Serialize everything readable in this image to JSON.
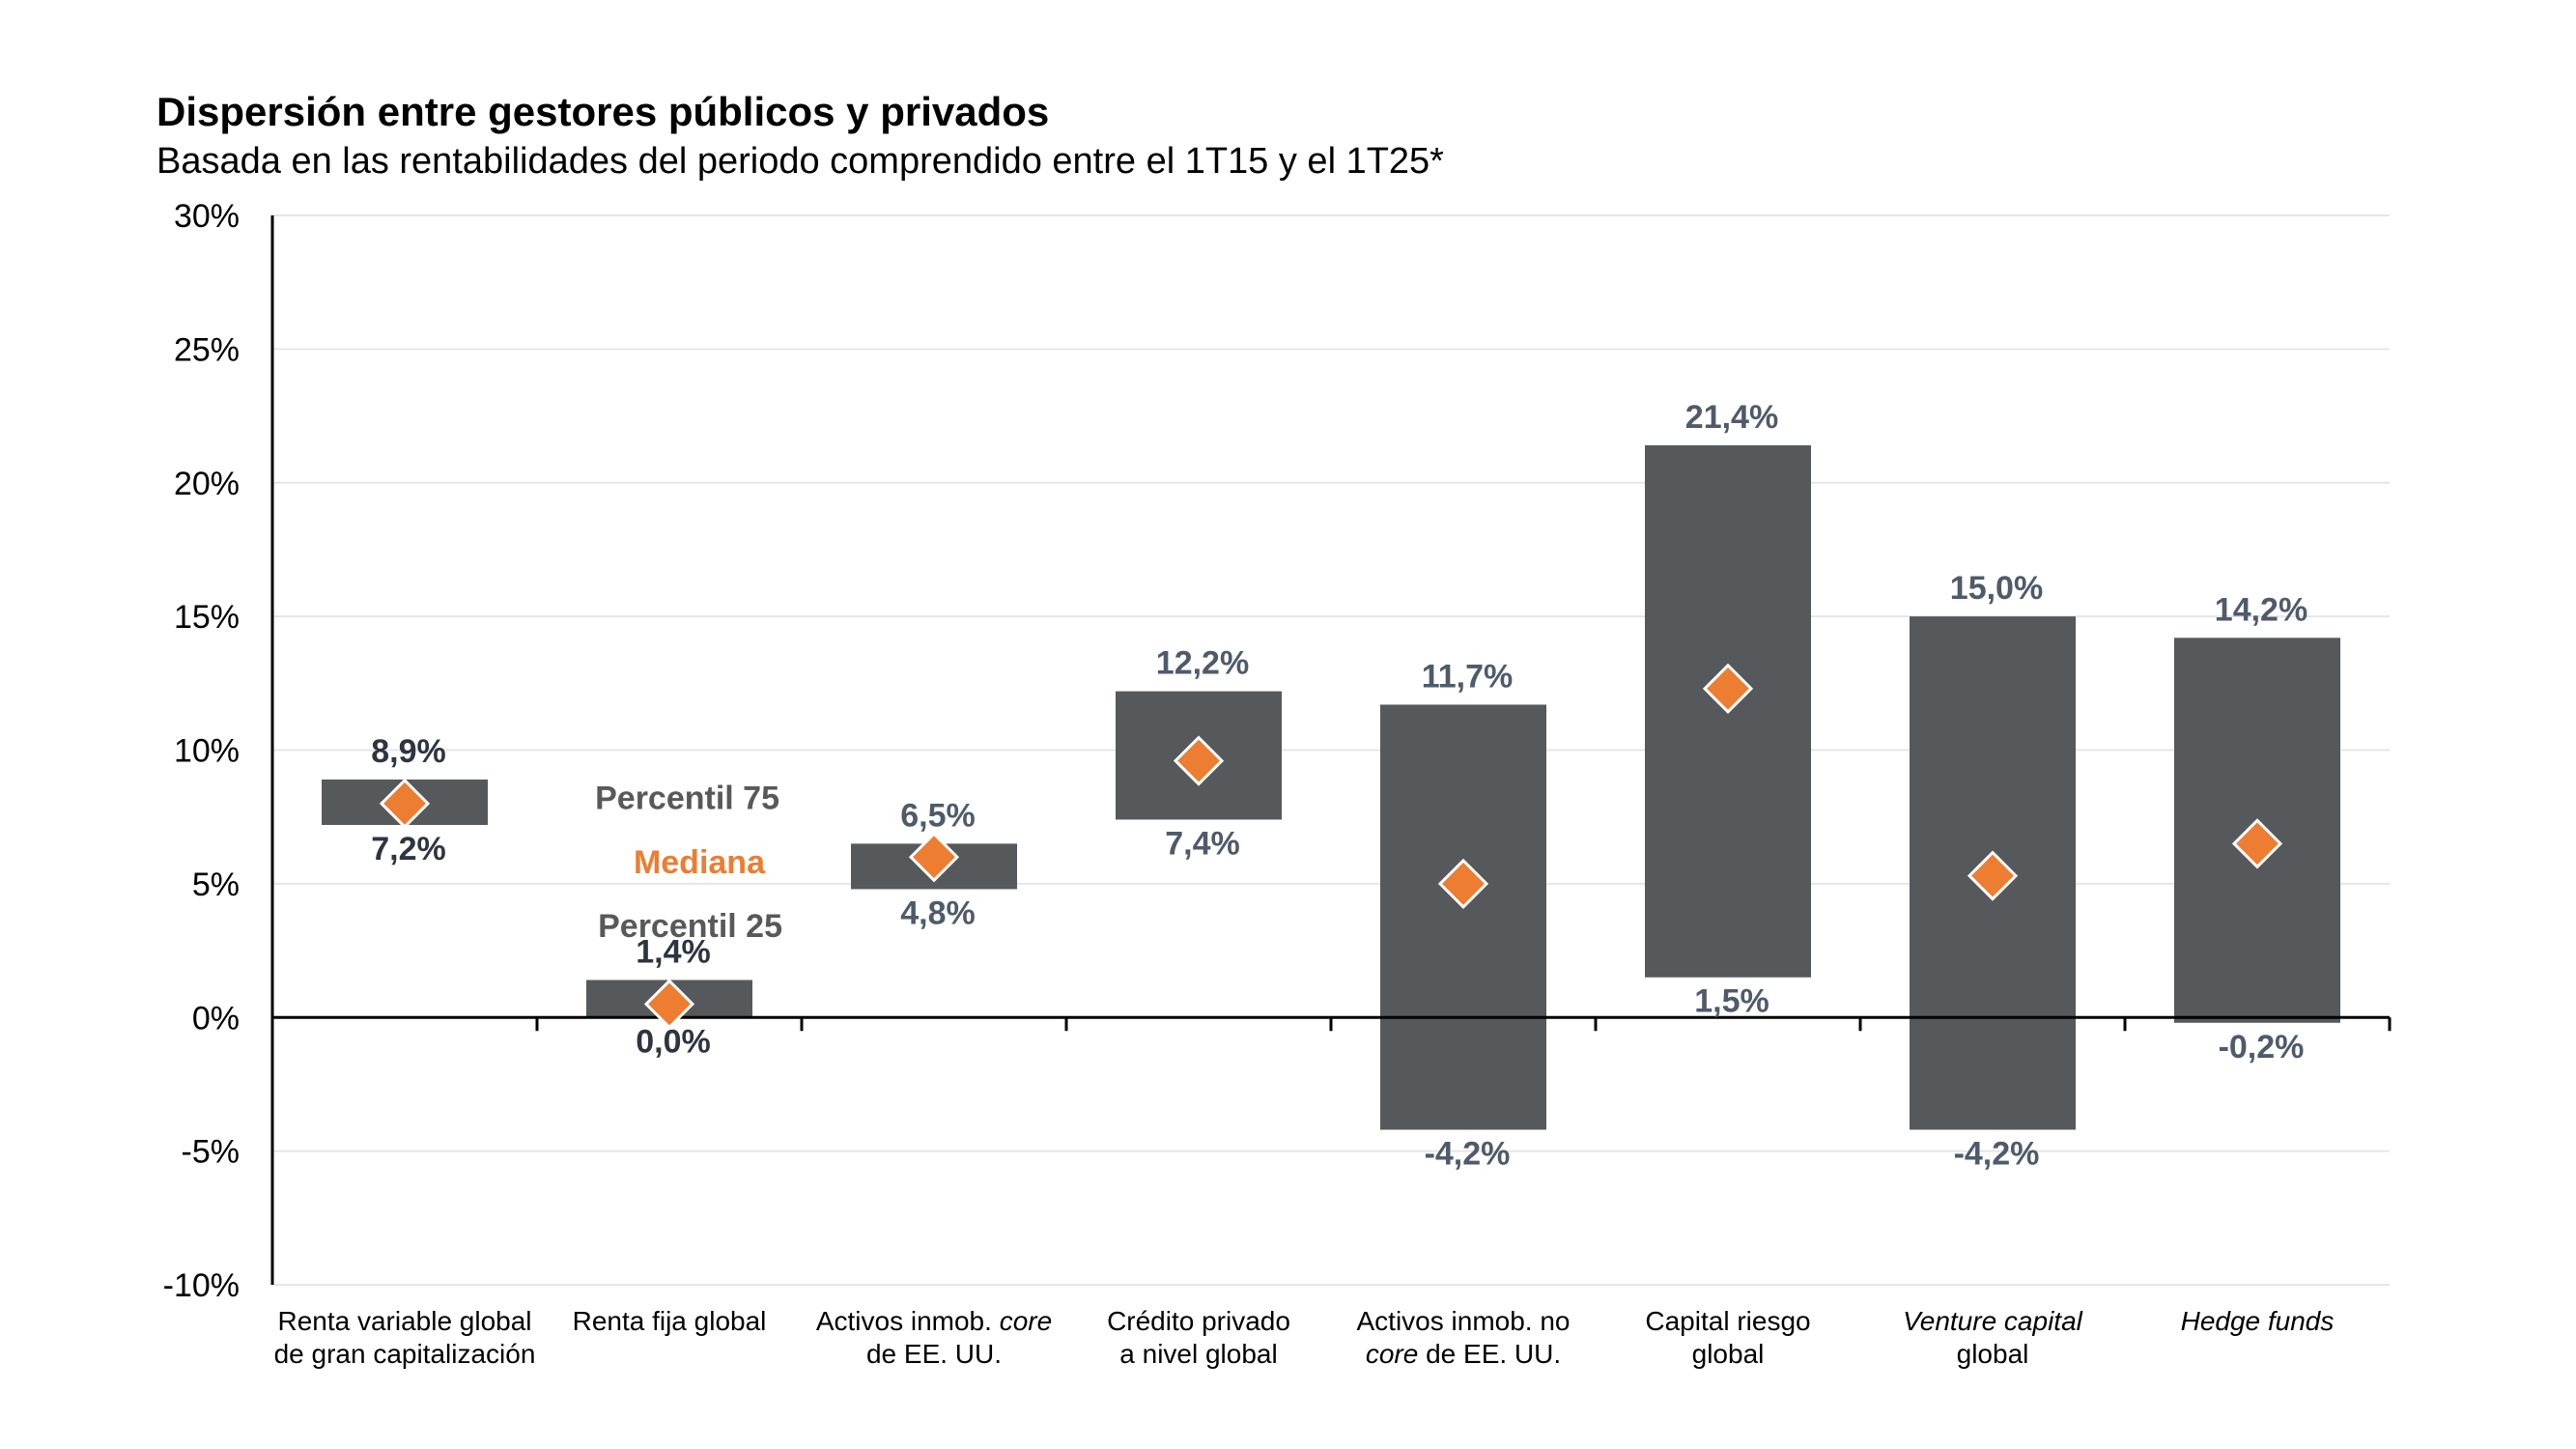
{
  "title": "Dispersión entre gestores públicos y privados",
  "subtitle": "Basada en las rentabilidades del periodo comprendido entre el 1T15 y el 1T25*",
  "chart_data": {
    "type": "floating-bar",
    "title": "Dispersión entre gestores públicos y privados",
    "subtitle": "Basada en las rentabilidades del periodo comprendido entre el 1T15 y el 1T25*",
    "ylim": [
      -10,
      30
    ],
    "ytick_values": [
      -10,
      -5,
      0,
      5,
      10,
      15,
      20,
      25,
      30
    ],
    "ytick_labels": [
      "-10%",
      "-5%",
      "0%",
      "5%",
      "10%",
      "15%",
      "20%",
      "25%",
      "30%"
    ],
    "grid": true,
    "colors": {
      "bar": "#55595c",
      "median": "#ed7d31",
      "label": "#4f5a6b"
    },
    "legend": {
      "p75": "Percentil 75",
      "median": "Mediana",
      "p25": "Percentil 25"
    },
    "categories": [
      {
        "lines": [
          [
            {
              "t": "Renta variable global"
            }
          ],
          [
            {
              "t": "de gran capitalización"
            }
          ]
        ],
        "p75": 8.9,
        "p25": 7.2,
        "median": 8.0,
        "p75_label": "8,9%",
        "p25_label": "7,2%"
      },
      {
        "lines": [
          [
            {
              "t": "Renta fija global"
            }
          ]
        ],
        "p75": 1.4,
        "p25": 0.0,
        "median": 0.5,
        "p75_label": "1,4%",
        "p25_label": "0,0%"
      },
      {
        "lines": [
          [
            {
              "t": "Activos inmob. "
            },
            {
              "t": "core",
              "i": true
            }
          ],
          [
            {
              "t": "de EE. UU."
            }
          ]
        ],
        "p75": 6.5,
        "p25": 4.8,
        "median": 6.0,
        "p75_label": "6,5%",
        "p25_label": "4,8%"
      },
      {
        "lines": [
          [
            {
              "t": "Crédito privado"
            }
          ],
          [
            {
              "t": "a nivel global"
            }
          ]
        ],
        "p75": 12.2,
        "p25": 7.4,
        "median": 9.6,
        "p75_label": "12,2%",
        "p25_label": "7,4%"
      },
      {
        "lines": [
          [
            {
              "t": "Activos inmob. no"
            }
          ],
          [
            {
              "t": "core",
              "i": true
            },
            {
              "t": " de EE. UU."
            }
          ]
        ],
        "p75": 11.7,
        "p25": -4.2,
        "median": 5.0,
        "p75_label": "11,7%",
        "p25_label": "-4,2%"
      },
      {
        "lines": [
          [
            {
              "t": "Capital riesgo"
            }
          ],
          [
            {
              "t": "global"
            }
          ]
        ],
        "p75": 21.4,
        "p25": 1.5,
        "median": 12.3,
        "p75_label": "21,4%",
        "p25_label": "1,5%"
      },
      {
        "lines": [
          [
            {
              "t": "Venture capital",
              "i": true
            }
          ],
          [
            {
              "t": "global"
            }
          ]
        ],
        "p75": 15.0,
        "p25": -4.2,
        "median": 5.3,
        "p75_label": "15,0%",
        "p25_label": "-4,2%"
      },
      {
        "lines": [
          [
            {
              "t": "Hedge funds",
              "i": true
            }
          ]
        ],
        "p75": 14.2,
        "p25": -0.2,
        "median": 6.5,
        "p75_label": "14,2%",
        "p25_label": "-0,2%"
      }
    ]
  }
}
